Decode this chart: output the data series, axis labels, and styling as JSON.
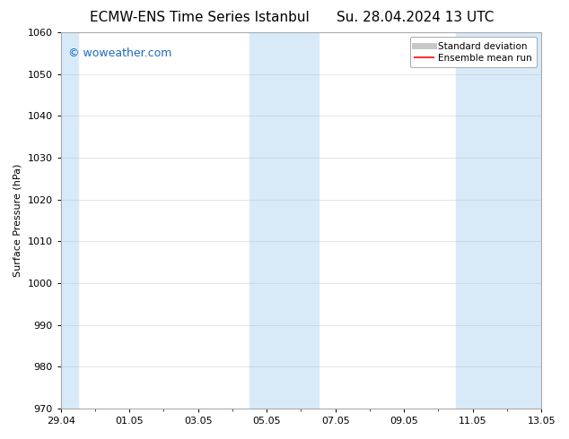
{
  "title_left": "ECMW-ENS Time Series Istanbul",
  "title_right": "Su. 28.04.2024 13 UTC",
  "ylabel": "Surface Pressure (hPa)",
  "ylim": [
    970,
    1060
  ],
  "yticks": [
    970,
    980,
    990,
    1000,
    1010,
    1020,
    1030,
    1040,
    1050,
    1060
  ],
  "xtick_labels": [
    "29.04",
    "01.05",
    "03.05",
    "05.05",
    "07.05",
    "09.05",
    "11.05",
    "13.05"
  ],
  "xtick_positions": [
    0,
    2,
    4,
    6,
    8,
    10,
    12,
    14
  ],
  "bg_color": "#ffffff",
  "plot_bg_color": "#ffffff",
  "shaded_bands": [
    {
      "x_start": 0,
      "x_end": 0.5,
      "color": "#d8eaf8"
    },
    {
      "x_start": 5.5,
      "x_end": 7.5,
      "color": "#d8eaf8"
    },
    {
      "x_start": 11.5,
      "x_end": 14.0,
      "color": "#d8eaf8"
    }
  ],
  "watermark_text": "© woweather.com",
  "watermark_color": "#1a6bbf",
  "legend_std_color": "#c8c8c8",
  "legend_mean_color": "#ff3333",
  "title_fontsize": 11,
  "axis_label_fontsize": 8,
  "tick_fontsize": 8,
  "grid_color": "#bbbbbb",
  "grid_alpha": 0.4,
  "x_min": 0,
  "x_max": 14
}
